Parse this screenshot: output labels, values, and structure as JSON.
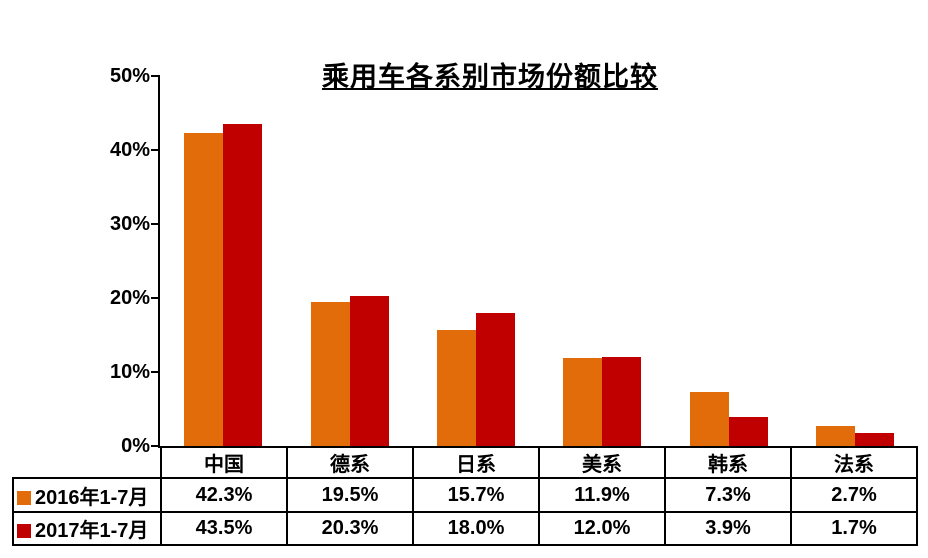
{
  "chart_data": {
    "type": "bar",
    "title": "乘用车各系别市场份额比较",
    "categories": [
      "中国",
      "德系",
      "日系",
      "美系",
      "韩系",
      "法系"
    ],
    "series": [
      {
        "name": "2016年1-7月",
        "color": "#E36C0A",
        "values": [
          42.3,
          19.5,
          15.7,
          11.9,
          7.3,
          2.7
        ],
        "display_values": [
          "42.3%",
          "19.5%",
          "15.7%",
          "11.9%",
          "7.3%",
          "2.7%"
        ]
      },
      {
        "name": "2017年1-7月",
        "color": "#C00000",
        "values": [
          43.5,
          20.3,
          18.0,
          12.0,
          3.9,
          1.7
        ],
        "display_values": [
          "43.5%",
          "20.3%",
          "18.0%",
          "12.0%",
          "3.9%",
          "1.7%"
        ]
      }
    ],
    "y_axis": {
      "min": 0,
      "max": 50,
      "tick_step": 10,
      "tick_labels": [
        "0%",
        "10%",
        "20%",
        "30%",
        "40%",
        "50%"
      ]
    },
    "grid": false,
    "legend_position": "data-table-rows",
    "background_color": "#FFFFFF",
    "text_color": "#000000",
    "axis_color": "#000000"
  }
}
